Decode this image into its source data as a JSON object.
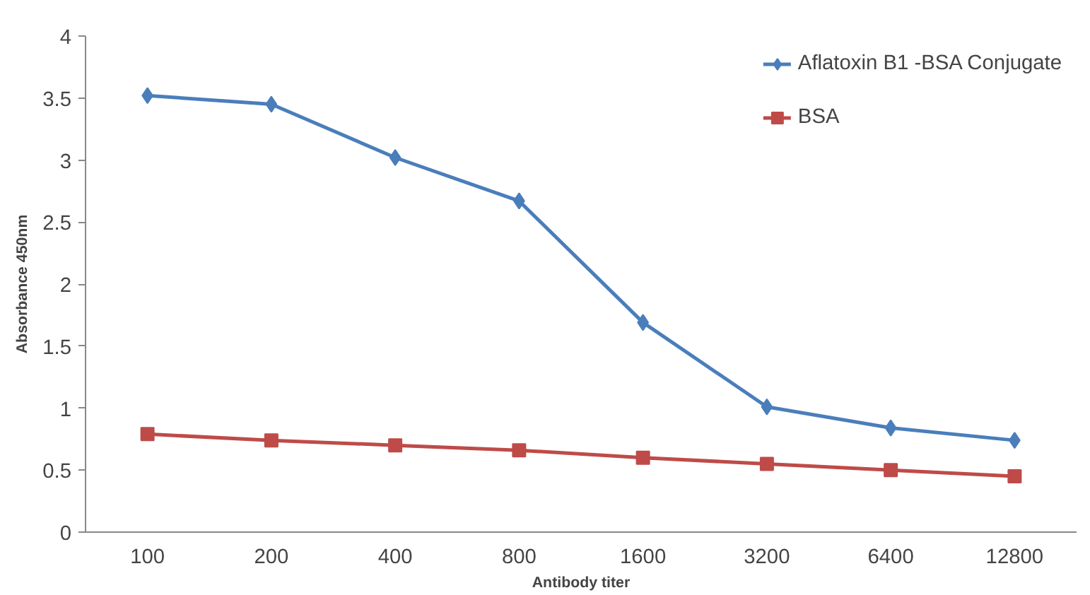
{
  "chart_data": {
    "type": "line",
    "xlabel": "Antibody titer",
    "ylabel": "Absorbance 450nm",
    "categories": [
      "100",
      "200",
      "400",
      "800",
      "1600",
      "3200",
      "6400",
      "12800"
    ],
    "series": [
      {
        "name": "Aflatoxin B1 -BSA Conjugate",
        "color": "#4a7ebb",
        "marker": "diamond",
        "values": [
          3.52,
          3.45,
          3.02,
          2.67,
          1.69,
          1.01,
          0.84,
          0.74
        ]
      },
      {
        "name": "BSA",
        "color": "#be4b48",
        "marker": "square",
        "values": [
          0.79,
          0.74,
          0.7,
          0.66,
          0.6,
          0.55,
          0.5,
          0.45
        ]
      }
    ],
    "ylim": [
      0,
      4
    ],
    "yticks": [
      0,
      0.5,
      1,
      1.5,
      2,
      2.5,
      3,
      3.5,
      4
    ],
    "grid": false,
    "legend": "top right"
  }
}
